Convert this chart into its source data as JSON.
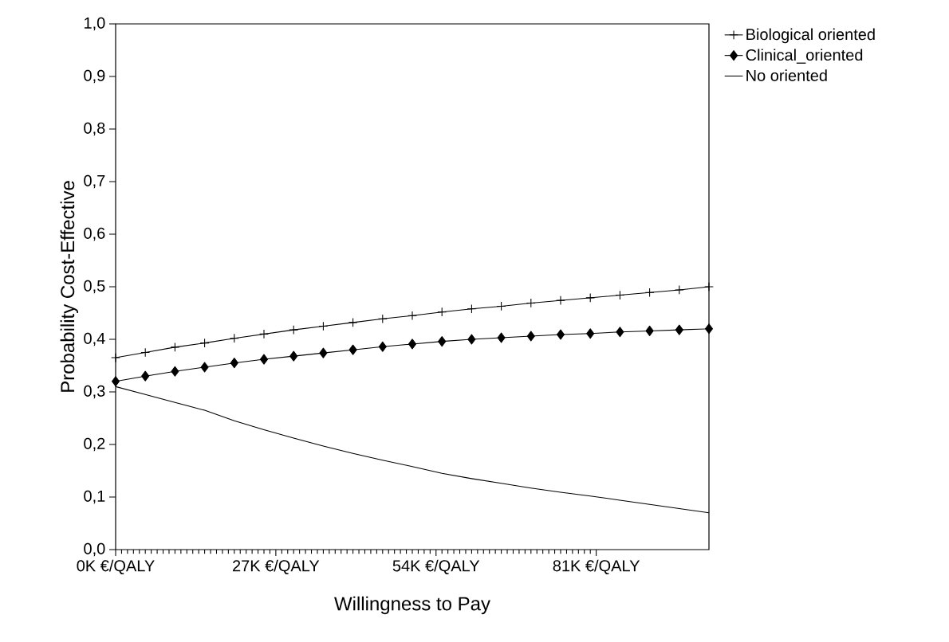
{
  "chart_data": {
    "type": "line",
    "xlabel": "Willingness to Pay",
    "ylabel": "Probability Cost-Effective",
    "x": [
      0,
      5,
      10,
      15,
      20,
      25,
      30,
      35,
      40,
      45,
      50,
      55,
      60,
      65,
      70,
      75,
      80,
      85,
      90,
      95,
      100
    ],
    "series": [
      {
        "name": "Biological oriented",
        "color": "#000000",
        "marker": "cross",
        "values": [
          0.365,
          0.375,
          0.385,
          0.393,
          0.402,
          0.41,
          0.418,
          0.425,
          0.432,
          0.439,
          0.445,
          0.452,
          0.458,
          0.463,
          0.469,
          0.474,
          0.479,
          0.484,
          0.489,
          0.494,
          0.5
        ]
      },
      {
        "name": "Clinical_oriented",
        "color": "#000000",
        "marker": "diamond",
        "values": [
          0.32,
          0.33,
          0.339,
          0.347,
          0.355,
          0.362,
          0.368,
          0.374,
          0.38,
          0.386,
          0.391,
          0.396,
          0.4,
          0.403,
          0.406,
          0.409,
          0.411,
          0.414,
          0.416,
          0.418,
          0.42
        ]
      },
      {
        "name": "No oriented",
        "color": "#000000",
        "marker": "none",
        "values": [
          0.31,
          0.295,
          0.28,
          0.265,
          0.245,
          0.228,
          0.212,
          0.197,
          0.183,
          0.17,
          0.158,
          0.145,
          0.135,
          0.126,
          0.117,
          0.109,
          0.102,
          0.094,
          0.086,
          0.078,
          0.07
        ]
      }
    ],
    "xlim": [
      0,
      100
    ],
    "ylim": [
      0,
      1
    ],
    "xticks": [
      {
        "value": 0,
        "label": "0K €/QALY"
      },
      {
        "value": 27,
        "label": "27K €/QALY"
      },
      {
        "value": 54,
        "label": "54K €/QALY"
      },
      {
        "value": 81,
        "label": "81K €/QALY"
      }
    ],
    "yticks": [
      {
        "value": 0,
        "label": "0,0"
      },
      {
        "value": 0.1,
        "label": "0,1"
      },
      {
        "value": 0.2,
        "label": "0,2"
      },
      {
        "value": 0.3,
        "label": "0,3"
      },
      {
        "value": 0.4,
        "label": "0,4"
      },
      {
        "value": 0.5,
        "label": "0,5"
      },
      {
        "value": 0.6,
        "label": "0,6"
      },
      {
        "value": 0.7,
        "label": "0,7"
      },
      {
        "value": 0.8,
        "label": "0,8"
      },
      {
        "value": 0.9,
        "label": "0,9"
      },
      {
        "value": 1,
        "label": "1,0"
      }
    ],
    "grid": false,
    "legend": "top right"
  }
}
